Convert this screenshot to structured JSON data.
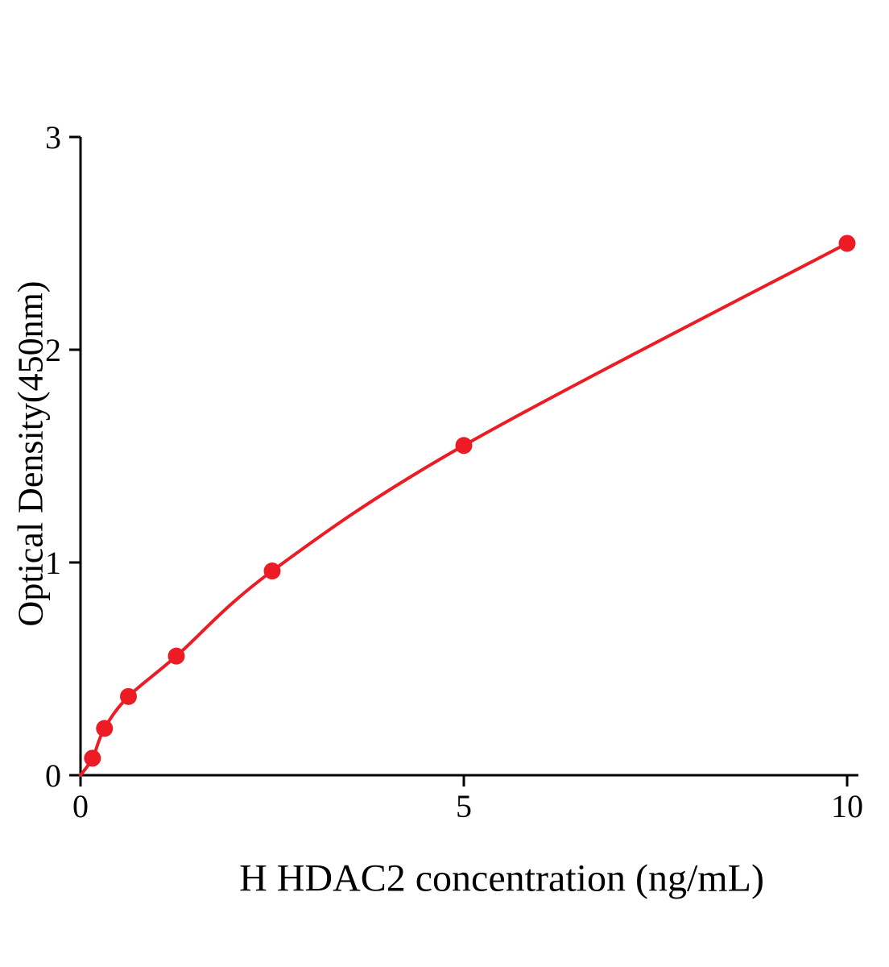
{
  "chart_data": {
    "type": "scatter",
    "title": "",
    "xlabel": "H HDAC2 concentration (ng/mL)",
    "ylabel": "Optical Density(450nm)",
    "x": [
      0.156,
      0.3125,
      0.625,
      1.25,
      2.5,
      5,
      10
    ],
    "y": [
      0.08,
      0.22,
      0.37,
      0.56,
      0.96,
      1.55,
      2.5
    ],
    "curve_start": {
      "x": 0,
      "y": 0
    },
    "xlim": [
      0,
      10
    ],
    "ylim": [
      0,
      3
    ],
    "xticks": [
      0,
      5,
      10
    ],
    "yticks": [
      0,
      1,
      2,
      3
    ],
    "grid": false,
    "legend": null,
    "line_color": "#ed1c24",
    "marker_color": "#ed1c24",
    "axis_color": "#000000"
  }
}
